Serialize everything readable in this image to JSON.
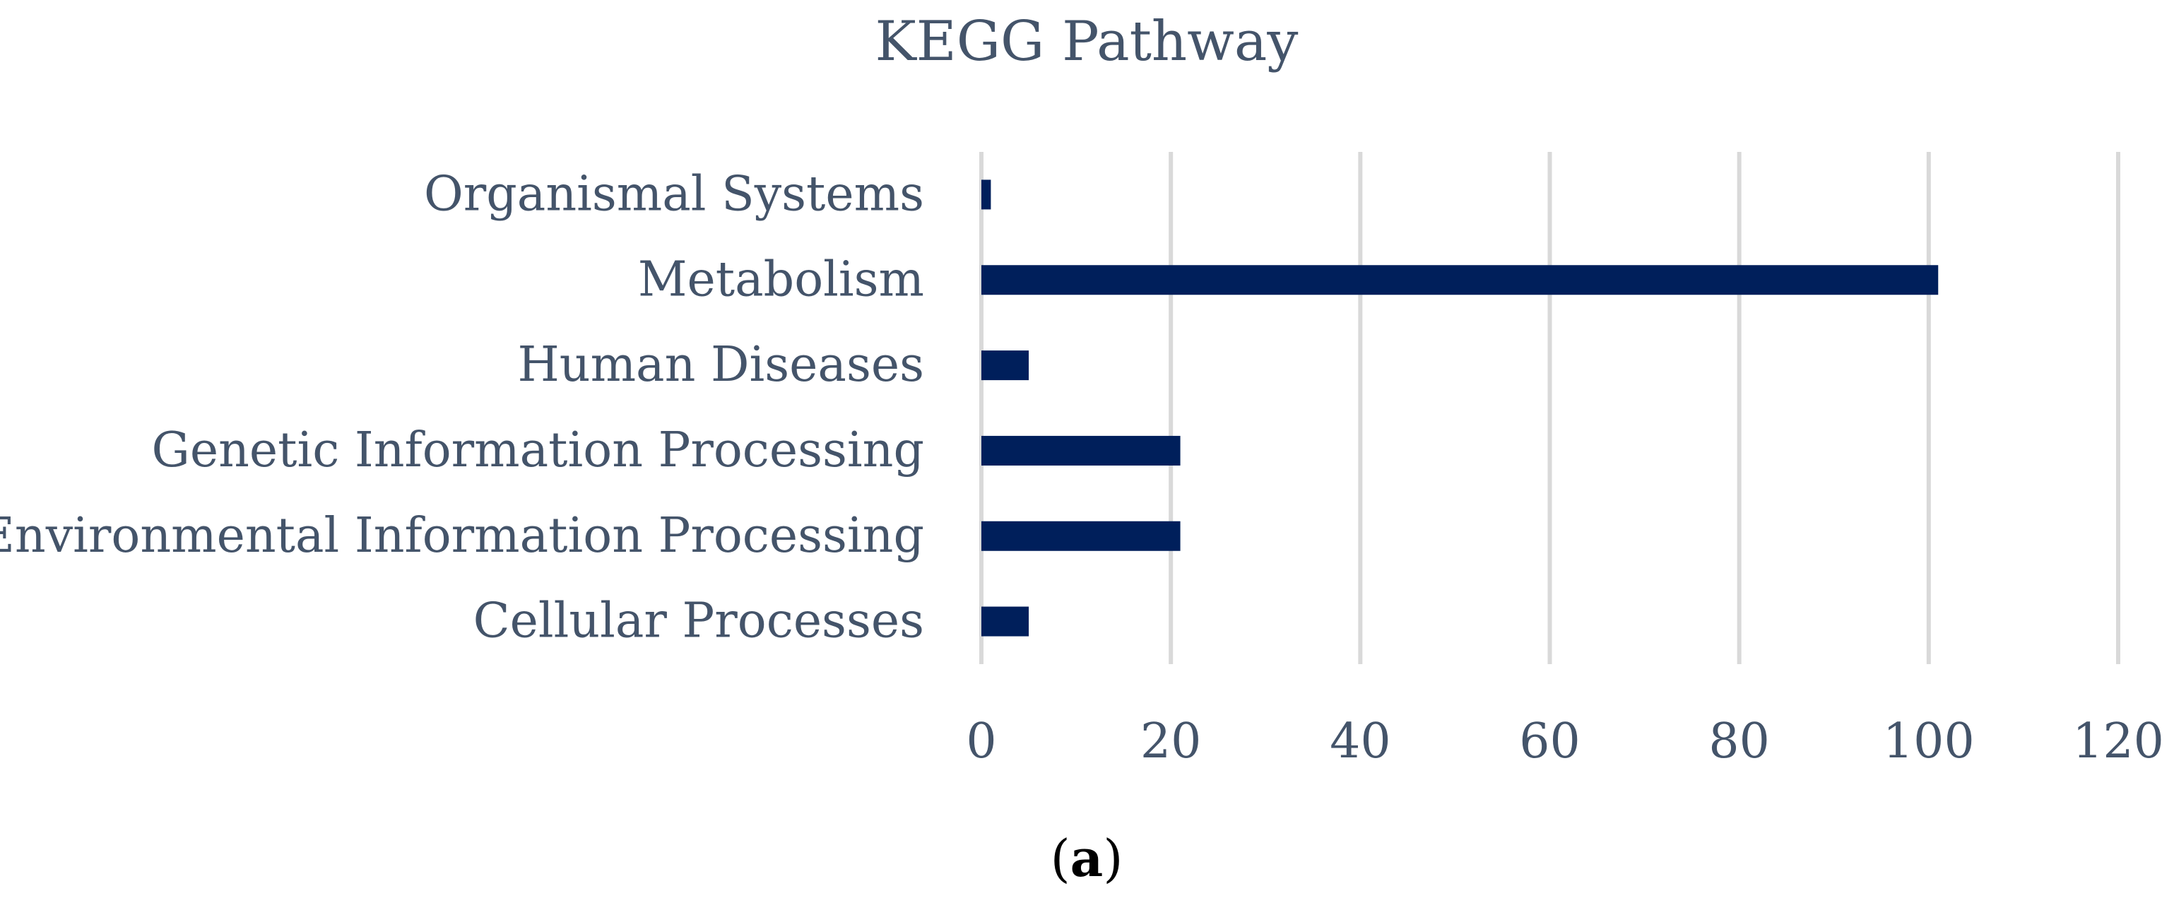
{
  "chart_data": {
    "type": "bar",
    "orientation": "horizontal",
    "title": "KEGG Pathway",
    "categories": [
      "Organismal Systems",
      "Metabolism",
      "Human Diseases",
      "Genetic Information Processing",
      "Environmental Information Processing",
      "Cellular Processes"
    ],
    "values": [
      1,
      101,
      5,
      21,
      21,
      5
    ],
    "xlim": [
      0,
      120
    ],
    "xticks": [
      0,
      20,
      40,
      60,
      80,
      100,
      120
    ],
    "xlabel": "",
    "ylabel": "",
    "grid": true,
    "legend": "none",
    "bar_color": "#001f5b"
  },
  "caption": {
    "open": "(",
    "letter": "a",
    "close": ")"
  }
}
